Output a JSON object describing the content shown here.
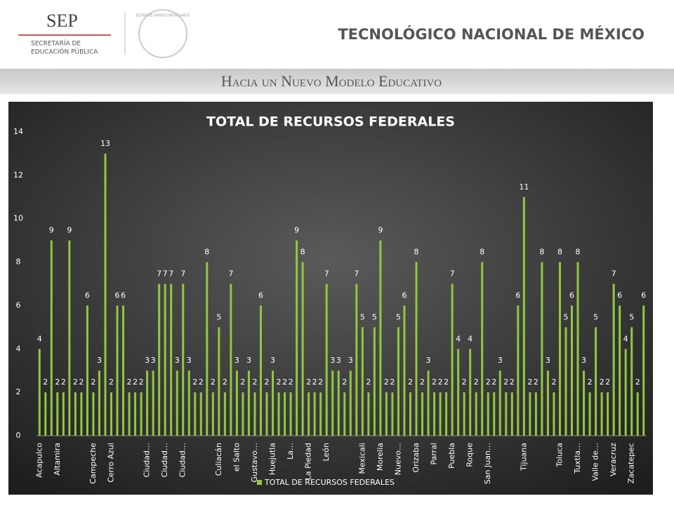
{
  "header": {
    "logo": "SEP",
    "logo_line1": "SECRETARÍA DE",
    "logo_line2": "EDUCACIÓN PÚBLICA",
    "emblem": "ESTADOS UNIDOS MEXICANOS",
    "institution": "TECNOLÓGICO NACIONAL DE MÉXICO",
    "slogan": "Hacia un Nuevo Modelo Educativo"
  },
  "chart_data": {
    "type": "bar",
    "title": "TOTAL DE RECURSOS FEDERALES",
    "categories": [
      "Acapulco",
      null,
      null,
      "Altamira",
      null,
      null,
      null,
      null,
      null,
      "Campeche",
      null,
      null,
      "Cerro Azul",
      null,
      null,
      null,
      null,
      null,
      "Ciudad…",
      null,
      null,
      "Ciudad…",
      null,
      null,
      "Ciudad…",
      null,
      null,
      null,
      null,
      null,
      "Culiacán",
      null,
      null,
      "el Salto",
      null,
      null,
      "Gustavo…",
      null,
      null,
      "Huejutla",
      null,
      null,
      "La…",
      null,
      null,
      "La Piedad",
      null,
      null,
      "León",
      null,
      null,
      null,
      null,
      null,
      "Mexicali",
      null,
      null,
      "Morelia",
      null,
      null,
      "Nuevo…",
      null,
      null,
      "Orizaba",
      null,
      null,
      "Parral",
      null,
      null,
      "Puebla",
      null,
      null,
      "Roque",
      null,
      null,
      "San Juan…",
      null,
      null,
      null,
      null,
      null,
      "Tijuana",
      null,
      null,
      null,
      null,
      null,
      "Toluca",
      null,
      null,
      "Tuxtla…",
      null,
      null,
      "Valle de…",
      null,
      null,
      "Veracruz",
      null,
      null,
      "Zacatepec",
      null,
      null
    ],
    "series": [
      {
        "name": "TOTAL DE RECURSOS FEDERALES",
        "color": "#92c83e",
        "values": [
          4,
          2,
          9,
          2,
          2,
          9,
          2,
          2,
          6,
          2,
          3,
          13,
          2,
          6,
          6,
          2,
          2,
          2,
          3,
          3,
          7,
          7,
          7,
          3,
          7,
          3,
          2,
          2,
          8,
          2,
          5,
          2,
          7,
          3,
          2,
          3,
          2,
          6,
          2,
          3,
          2,
          2,
          2,
          9,
          8,
          2,
          2,
          2,
          7,
          3,
          3,
          2,
          3,
          7,
          5,
          2,
          5,
          9,
          2,
          2,
          5,
          6,
          2,
          8,
          2,
          3,
          2,
          2,
          2,
          7,
          4,
          2,
          4,
          2,
          8,
          2,
          2,
          3,
          2,
          2,
          6,
          11,
          2,
          2,
          8,
          3,
          2,
          8,
          5,
          6,
          8,
          3,
          2,
          5,
          2,
          2,
          7,
          6,
          4,
          5,
          2,
          6
        ]
      }
    ],
    "ylim": [
      0,
      14
    ],
    "yticks": [
      0,
      2,
      4,
      6,
      8,
      10,
      12,
      14
    ],
    "grid": false,
    "legend": "bottom"
  }
}
